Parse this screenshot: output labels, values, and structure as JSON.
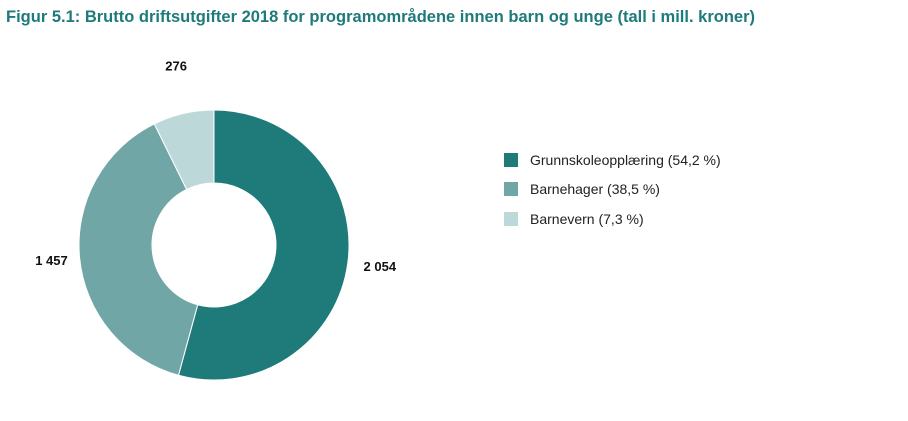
{
  "title": "Figur 5.1: Brutto driftsutgifter 2018 for programområdene innen barn og unge (tall i mill. kroner)",
  "chart_data": {
    "type": "pie",
    "donut": true,
    "title": "Figur 5.1: Brutto driftsutgifter 2018 for programområdene innen barn og unge (tall i mill. kroner)",
    "legend_position": "right",
    "slices": [
      {
        "name": "Grunnskoleopplæring",
        "value": 2054,
        "value_label": "2 054",
        "legend": "Grunnskoleopplæring (54,2 %)",
        "color": "#1f7a7a"
      },
      {
        "name": "Barnehager",
        "value": 1457,
        "value_label": "1 457",
        "legend": "Barnehager (38,5 %)",
        "color": "#70a7a6"
      },
      {
        "name": "Barnevern",
        "value": 276,
        "value_label": "276",
        "legend": "Barnevern (7,3 %)",
        "color": "#bcd8d8"
      }
    ]
  }
}
